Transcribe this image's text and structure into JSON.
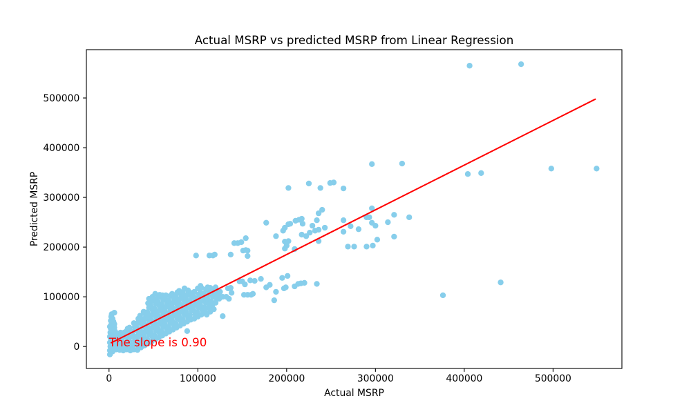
{
  "chart_data": {
    "type": "scatter",
    "title": "Actual MSRP vs predicted MSRP from Linear Regression",
    "xlabel": "Actual MSRP",
    "ylabel": "Predicted MSRP",
    "xlim": [
      -25500,
      577500
    ],
    "ylim": [
      -44200,
      597200
    ],
    "xticks": [
      0,
      100000,
      200000,
      300000,
      400000,
      500000
    ],
    "xtick_labels": [
      "0",
      "100000",
      "200000",
      "300000",
      "400000",
      "500000"
    ],
    "yticks": [
      0,
      100000,
      200000,
      300000,
      400000,
      500000
    ],
    "ytick_labels": [
      "0",
      "100000",
      "200000",
      "300000",
      "400000",
      "500000"
    ],
    "grid": false,
    "legend": false,
    "point_color": "#87ceeb",
    "regression_line": {
      "x": [
        2000,
        548000
      ],
      "y": [
        7000,
        498000
      ],
      "color": "#ff0000"
    },
    "annotation": {
      "text": "The slope is 0.90",
      "color": "#ff0000"
    },
    "points": [
      [
        1000,
        -16000
      ],
      [
        2000,
        -12000
      ],
      [
        1000,
        -8000
      ],
      [
        4000,
        -10000
      ],
      [
        3000,
        -4000
      ],
      [
        5000,
        -2000
      ],
      [
        1500,
        0
      ],
      [
        2500,
        4000
      ],
      [
        1000,
        8000
      ],
      [
        5000,
        10000
      ],
      [
        3000,
        12000
      ],
      [
        2000,
        16000
      ],
      [
        1000,
        20000
      ],
      [
        5000,
        20000
      ],
      [
        2500,
        24000
      ],
      [
        1500,
        28000
      ],
      [
        5000,
        30000
      ],
      [
        3000,
        32000
      ],
      [
        2000,
        36000
      ],
      [
        6000,
        38000
      ],
      [
        1000,
        40000
      ],
      [
        2500,
        44000
      ],
      [
        6000,
        45000
      ],
      [
        3500,
        48000
      ],
      [
        5000,
        50000
      ],
      [
        2000,
        52000
      ],
      [
        4000,
        56000
      ],
      [
        2500,
        60000
      ],
      [
        3000,
        65000
      ],
      [
        6000,
        68000
      ],
      [
        8000,
        -6000
      ],
      [
        7000,
        3000
      ],
      [
        9000,
        12000
      ],
      [
        8000,
        21000
      ],
      [
        7000,
        30000
      ],
      [
        12000,
        -7000
      ],
      [
        12000,
        -4000
      ],
      [
        13000,
        5000
      ],
      [
        11000,
        14000
      ],
      [
        12000,
        23000
      ],
      [
        13000,
        28000
      ],
      [
        16000,
        -8000
      ],
      [
        17000,
        1000
      ],
      [
        15000,
        10000
      ],
      [
        16000,
        19000
      ],
      [
        17000,
        28000
      ],
      [
        20000,
        -6000
      ],
      [
        19000,
        3000
      ],
      [
        21000,
        12000
      ],
      [
        20000,
        21000
      ],
      [
        19000,
        30000
      ],
      [
        21000,
        36000
      ],
      [
        24000,
        -8000
      ],
      [
        25000,
        1000
      ],
      [
        23000,
        10000
      ],
      [
        24000,
        19000
      ],
      [
        25000,
        28000
      ],
      [
        23000,
        38000
      ],
      [
        28000,
        -6000
      ],
      [
        27000,
        3000
      ],
      [
        29000,
        12000
      ],
      [
        28000,
        21000
      ],
      [
        27000,
        30000
      ],
      [
        29000,
        39000
      ],
      [
        28000,
        47000
      ],
      [
        32000,
        -7000
      ],
      [
        33000,
        2000
      ],
      [
        31000,
        11000
      ],
      [
        32000,
        20000
      ],
      [
        33000,
        29000
      ],
      [
        31000,
        38000
      ],
      [
        32000,
        47000
      ],
      [
        33000,
        56000
      ],
      [
        36000,
        -2000
      ],
      [
        35000,
        7000
      ],
      [
        37000,
        16000
      ],
      [
        36000,
        25000
      ],
      [
        35000,
        34000
      ],
      [
        37000,
        43000
      ],
      [
        36000,
        52000
      ],
      [
        35000,
        62000
      ],
      [
        40000,
        2000
      ],
      [
        41000,
        11000
      ],
      [
        39000,
        20000
      ],
      [
        40000,
        29000
      ],
      [
        41000,
        38000
      ],
      [
        39000,
        47000
      ],
      [
        40000,
        56000
      ],
      [
        41000,
        65000
      ],
      [
        39000,
        70000
      ],
      [
        44000,
        6000
      ],
      [
        43000,
        15000
      ],
      [
        45000,
        24000
      ],
      [
        44000,
        33000
      ],
      [
        43000,
        42000
      ],
      [
        45000,
        51000
      ],
      [
        44000,
        60000
      ],
      [
        43000,
        69000
      ],
      [
        45000,
        78000
      ],
      [
        44000,
        87000
      ],
      [
        45000,
        96000
      ],
      [
        48000,
        10000
      ],
      [
        49000,
        19000
      ],
      [
        47000,
        28000
      ],
      [
        48000,
        37000
      ],
      [
        49000,
        46000
      ],
      [
        47000,
        55000
      ],
      [
        48000,
        64000
      ],
      [
        49000,
        73000
      ],
      [
        47000,
        82000
      ],
      [
        48000,
        91000
      ],
      [
        49000,
        100000
      ],
      [
        52000,
        14000
      ],
      [
        51000,
        23000
      ],
      [
        53000,
        32000
      ],
      [
        52000,
        41000
      ],
      [
        51000,
        50000
      ],
      [
        53000,
        59000
      ],
      [
        52000,
        68000
      ],
      [
        51000,
        77000
      ],
      [
        53000,
        86000
      ],
      [
        52000,
        95000
      ],
      [
        52000,
        106000
      ],
      [
        56000,
        18000
      ],
      [
        57000,
        27000
      ],
      [
        55000,
        36000
      ],
      [
        56000,
        45000
      ],
      [
        57000,
        54000
      ],
      [
        55000,
        63000
      ],
      [
        56000,
        72000
      ],
      [
        57000,
        81000
      ],
      [
        55000,
        90000
      ],
      [
        56000,
        99000
      ],
      [
        57000,
        104000
      ],
      [
        60000,
        22000
      ],
      [
        59000,
        31000
      ],
      [
        61000,
        40000
      ],
      [
        60000,
        49000
      ],
      [
        59000,
        58000
      ],
      [
        61000,
        67000
      ],
      [
        60000,
        76000
      ],
      [
        59000,
        85000
      ],
      [
        61000,
        94000
      ],
      [
        60000,
        103000
      ],
      [
        64000,
        26000
      ],
      [
        65000,
        35000
      ],
      [
        63000,
        44000
      ],
      [
        64000,
        53000
      ],
      [
        65000,
        62000
      ],
      [
        63000,
        71000
      ],
      [
        64000,
        80000
      ],
      [
        65000,
        89000
      ],
      [
        63000,
        98000
      ],
      [
        64000,
        103000
      ],
      [
        68000,
        30000
      ],
      [
        67000,
        39000
      ],
      [
        69000,
        48000
      ],
      [
        68000,
        57000
      ],
      [
        67000,
        66000
      ],
      [
        69000,
        75000
      ],
      [
        68000,
        84000
      ],
      [
        67000,
        93000
      ],
      [
        69000,
        102000
      ],
      [
        72000,
        34000
      ],
      [
        73000,
        43000
      ],
      [
        71000,
        52000
      ],
      [
        72000,
        61000
      ],
      [
        73000,
        70000
      ],
      [
        71000,
        79000
      ],
      [
        72000,
        88000
      ],
      [
        73000,
        97000
      ],
      [
        71000,
        106000
      ],
      [
        76000,
        38000
      ],
      [
        75000,
        47000
      ],
      [
        77000,
        56000
      ],
      [
        76000,
        65000
      ],
      [
        75000,
        74000
      ],
      [
        77000,
        83000
      ],
      [
        76000,
        92000
      ],
      [
        75000,
        101000
      ],
      [
        77000,
        109000
      ],
      [
        80000,
        42000
      ],
      [
        81000,
        51000
      ],
      [
        79000,
        60000
      ],
      [
        80000,
        69000
      ],
      [
        81000,
        78000
      ],
      [
        79000,
        87000
      ],
      [
        80000,
        96000
      ],
      [
        81000,
        105000
      ],
      [
        79000,
        112000
      ],
      [
        84000,
        46000
      ],
      [
        83000,
        55000
      ],
      [
        85000,
        64000
      ],
      [
        84000,
        73000
      ],
      [
        83000,
        82000
      ],
      [
        85000,
        91000
      ],
      [
        84000,
        100000
      ],
      [
        83000,
        109000
      ],
      [
        85000,
        117000
      ],
      [
        88000,
        50000
      ],
      [
        89000,
        59000
      ],
      [
        87000,
        68000
      ],
      [
        88000,
        77000
      ],
      [
        89000,
        86000
      ],
      [
        87000,
        95000
      ],
      [
        88000,
        104000
      ],
      [
        89000,
        113000
      ],
      [
        92000,
        54000
      ],
      [
        91000,
        63000
      ],
      [
        93000,
        72000
      ],
      [
        92000,
        81000
      ],
      [
        91000,
        90000
      ],
      [
        93000,
        99000
      ],
      [
        92000,
        108000
      ],
      [
        96000,
        56000
      ],
      [
        97000,
        65000
      ],
      [
        95000,
        74000
      ],
      [
        96000,
        83000
      ],
      [
        97000,
        92000
      ],
      [
        95000,
        101000
      ],
      [
        96000,
        110000
      ],
      [
        100000,
        60000
      ],
      [
        99000,
        69000
      ],
      [
        101000,
        78000
      ],
      [
        100000,
        87000
      ],
      [
        99000,
        96000
      ],
      [
        101000,
        105000
      ],
      [
        100000,
        117000
      ],
      [
        104000,
        64000
      ],
      [
        105000,
        73000
      ],
      [
        103000,
        82000
      ],
      [
        104000,
        91000
      ],
      [
        105000,
        100000
      ],
      [
        103000,
        109000
      ],
      [
        104000,
        118000
      ],
      [
        108000,
        70000
      ],
      [
        107000,
        79000
      ],
      [
        109000,
        88000
      ],
      [
        108000,
        97000
      ],
      [
        107000,
        106000
      ],
      [
        109000,
        115000
      ],
      [
        112000,
        78000
      ],
      [
        113000,
        87000
      ],
      [
        111000,
        96000
      ],
      [
        112000,
        105000
      ],
      [
        113000,
        112000
      ],
      [
        116000,
        82000
      ],
      [
        115000,
        91000
      ],
      [
        117000,
        100000
      ],
      [
        116000,
        109000
      ],
      [
        115000,
        116000
      ],
      [
        120000,
        88000
      ],
      [
        121000,
        97000
      ],
      [
        119000,
        106000
      ],
      [
        120000,
        114000
      ],
      [
        124000,
        96000
      ],
      [
        123000,
        104000
      ],
      [
        125000,
        110000
      ],
      [
        114000,
        70000
      ],
      [
        118000,
        75000
      ],
      [
        110000,
        64000
      ],
      [
        103000,
        122000
      ],
      [
        111000,
        119000
      ],
      [
        406000,
        565000
      ],
      [
        464000,
        568000
      ],
      [
        330000,
        368000
      ],
      [
        296000,
        367000
      ],
      [
        404000,
        347000
      ],
      [
        419000,
        349000
      ],
      [
        498000,
        358000
      ],
      [
        549000,
        358000
      ],
      [
        202000,
        319000
      ],
      [
        225000,
        328000
      ],
      [
        238000,
        319000
      ],
      [
        249000,
        329000
      ],
      [
        253000,
        330000
      ],
      [
        264000,
        318000
      ],
      [
        296000,
        278000
      ],
      [
        240000,
        275000
      ],
      [
        236000,
        268000
      ],
      [
        264000,
        254000
      ],
      [
        243000,
        239000
      ],
      [
        229000,
        243000
      ],
      [
        218000,
        247000
      ],
      [
        214000,
        255000
      ],
      [
        217000,
        257000
      ],
      [
        234000,
        254000
      ],
      [
        177000,
        249000
      ],
      [
        202000,
        246000
      ],
      [
        204000,
        247000
      ],
      [
        210000,
        253000
      ],
      [
        196000,
        233000
      ],
      [
        198000,
        239000
      ],
      [
        188000,
        222000
      ],
      [
        198000,
        211000
      ],
      [
        202000,
        212000
      ],
      [
        198000,
        197000
      ],
      [
        200000,
        203000
      ],
      [
        209000,
        196000
      ],
      [
        217000,
        225000
      ],
      [
        222000,
        222000
      ],
      [
        226000,
        229000
      ],
      [
        236000,
        212000
      ],
      [
        236000,
        235000
      ],
      [
        232000,
        233000
      ],
      [
        264000,
        231000
      ],
      [
        272000,
        242000
      ],
      [
        281000,
        236000
      ],
      [
        269000,
        201000
      ],
      [
        276000,
        201000
      ],
      [
        290000,
        201000
      ],
      [
        297000,
        203000
      ],
      [
        302000,
        215000
      ],
      [
        290000,
        260000
      ],
      [
        293000,
        260000
      ],
      [
        296000,
        249000
      ],
      [
        300000,
        243000
      ],
      [
        314000,
        250000
      ],
      [
        321000,
        265000
      ],
      [
        338000,
        260000
      ],
      [
        321000,
        221000
      ],
      [
        145000,
        208000
      ],
      [
        149000,
        210000
      ],
      [
        141000,
        208000
      ],
      [
        154000,
        218000
      ],
      [
        151000,
        193000
      ],
      [
        154000,
        194000
      ],
      [
        156000,
        193000
      ],
      [
        156000,
        182000
      ],
      [
        137000,
        185000
      ],
      [
        98000,
        183000
      ],
      [
        113000,
        183000
      ],
      [
        117000,
        183000
      ],
      [
        119000,
        185000
      ],
      [
        441000,
        129000
      ],
      [
        376000,
        103000
      ],
      [
        128000,
        61000
      ],
      [
        88000,
        31000
      ],
      [
        50000,
        22000
      ],
      [
        177000,
        119000
      ],
      [
        181000,
        124000
      ],
      [
        188000,
        110000
      ],
      [
        186000,
        93000
      ],
      [
        195000,
        138000
      ],
      [
        201000,
        142000
      ],
      [
        197000,
        117000
      ],
      [
        199000,
        119000
      ],
      [
        209000,
        121000
      ],
      [
        213000,
        126000
      ],
      [
        220000,
        128000
      ],
      [
        216000,
        127000
      ],
      [
        234000,
        126000
      ],
      [
        147000,
        131000
      ],
      [
        150000,
        131000
      ],
      [
        153000,
        125000
      ],
      [
        152000,
        104000
      ],
      [
        156000,
        104000
      ],
      [
        160000,
        104000
      ],
      [
        162000,
        106000
      ],
      [
        159000,
        133000
      ],
      [
        164000,
        132000
      ],
      [
        171000,
        136000
      ],
      [
        134000,
        117000
      ],
      [
        137000,
        118000
      ],
      [
        138000,
        108000
      ],
      [
        135000,
        96000
      ],
      [
        128000,
        100000
      ],
      [
        132000,
        100000
      ],
      [
        117000,
        113000
      ],
      [
        114000,
        118000
      ],
      [
        120000,
        119000
      ]
    ]
  }
}
